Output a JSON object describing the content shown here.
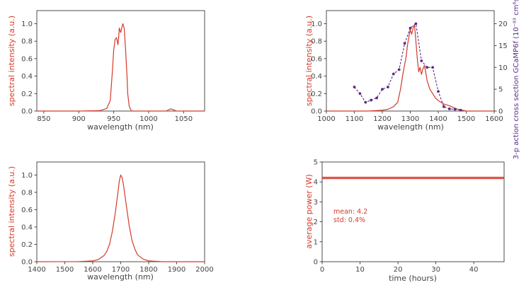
{
  "chart_data": [
    {
      "id": "spectrum-960",
      "type": "line",
      "xlabel": "wavelength (nm)",
      "ylabel": "spectral intensity (a.u.)",
      "xlim": [
        840,
        1080
      ],
      "ylim": [
        0,
        1.15
      ],
      "xticks": [
        850,
        900,
        950,
        1000,
        1050
      ],
      "yticks": [
        0.0,
        0.2,
        0.4,
        0.6,
        0.8,
        1.0
      ],
      "ytick_decimals": 1,
      "grid": false,
      "series": [
        {
          "color": "#d43a2a",
          "x": [
            840,
            900,
            930,
            940,
            945,
            948,
            950,
            952,
            954,
            956,
            957,
            958,
            960,
            962,
            963,
            965,
            967,
            969,
            970,
            972,
            974,
            976,
            980,
            1000,
            1025,
            1030,
            1032,
            1035,
            1040,
            1080
          ],
          "y": [
            0.0,
            0.0,
            0.005,
            0.03,
            0.12,
            0.45,
            0.7,
            0.82,
            0.84,
            0.76,
            0.83,
            0.95,
            0.9,
            0.97,
            1.0,
            0.95,
            0.7,
            0.4,
            0.2,
            0.06,
            0.02,
            0.0,
            0.0,
            0.0,
            0.0,
            0.02,
            0.025,
            0.015,
            0.0,
            0.0
          ]
        }
      ]
    },
    {
      "id": "spectrum-1300",
      "type": "line",
      "xlabel": "wavelength (nm)",
      "ylabel": "spectral intensity (a.u.)",
      "y2label": "3-p action cross section GCaMP6f (10⁻⁸³ cm⁶s²/photon²)",
      "xlim": [
        1000,
        1600
      ],
      "ylim": [
        0,
        1.15
      ],
      "y2lim": [
        0,
        23
      ],
      "xticks": [
        1000,
        1100,
        1200,
        1300,
        1400,
        1500,
        1600
      ],
      "yticks": [
        0.0,
        0.2,
        0.4,
        0.6,
        0.8,
        1.0
      ],
      "y2ticks": [
        0,
        5,
        10,
        15,
        20
      ],
      "ytick_decimals": 1,
      "grid": false,
      "series": [
        {
          "color": "#d43a2a",
          "axis": "left",
          "x": [
            1000,
            1150,
            1200,
            1220,
            1240,
            1255,
            1265,
            1275,
            1285,
            1290,
            1295,
            1300,
            1305,
            1310,
            1315,
            1320,
            1325,
            1330,
            1335,
            1340,
            1345,
            1350,
            1355,
            1360,
            1370,
            1380,
            1390,
            1400,
            1410,
            1420,
            1440,
            1470,
            1500,
            1600
          ],
          "y": [
            0.0,
            0.0,
            0.01,
            0.02,
            0.05,
            0.1,
            0.25,
            0.45,
            0.62,
            0.75,
            0.85,
            0.93,
            0.88,
            0.95,
            0.99,
            0.8,
            0.6,
            0.45,
            0.5,
            0.42,
            0.48,
            0.52,
            0.45,
            0.35,
            0.25,
            0.2,
            0.15,
            0.12,
            0.1,
            0.08,
            0.06,
            0.02,
            0.0,
            0.0
          ]
        },
        {
          "color": "#5b2a86",
          "axis": "right",
          "style": "dashed-markers",
          "x": [
            1100,
            1120,
            1140,
            1160,
            1180,
            1200,
            1220,
            1240,
            1260,
            1280,
            1300,
            1320,
            1340,
            1360,
            1380,
            1400,
            1420,
            1440,
            1460,
            1480
          ],
          "y": [
            5.5,
            4.0,
            2.0,
            2.5,
            3.0,
            5.0,
            5.5,
            8.5,
            9.5,
            15.5,
            19.0,
            20.0,
            11.5,
            10.0,
            10.0,
            4.5,
            1.0,
            0.5,
            0.4,
            0.2
          ]
        }
      ]
    },
    {
      "id": "spectrum-1700",
      "type": "line",
      "xlabel": "wavelength (nm)",
      "ylabel": "spectral intensity (a.u.)",
      "xlim": [
        1400,
        2000
      ],
      "ylim": [
        0,
        1.15
      ],
      "xticks": [
        1400,
        1500,
        1600,
        1700,
        1800,
        1900,
        2000
      ],
      "yticks": [
        0.0,
        0.2,
        0.4,
        0.6,
        0.8,
        1.0
      ],
      "ytick_decimals": 1,
      "grid": false,
      "series": [
        {
          "color": "#d43a2a",
          "x": [
            1400,
            1550,
            1600,
            1620,
            1640,
            1650,
            1660,
            1670,
            1680,
            1690,
            1695,
            1700,
            1705,
            1710,
            1720,
            1730,
            1740,
            1750,
            1760,
            1780,
            1800,
            1850,
            2000
          ],
          "y": [
            0.0,
            0.002,
            0.01,
            0.025,
            0.07,
            0.12,
            0.2,
            0.35,
            0.55,
            0.8,
            0.93,
            1.0,
            0.97,
            0.88,
            0.65,
            0.42,
            0.25,
            0.15,
            0.08,
            0.03,
            0.01,
            0.0,
            0.0
          ]
        }
      ]
    },
    {
      "id": "power-stability",
      "type": "line",
      "xlabel": "time (hours)",
      "ylabel": "average power (W)",
      "xlim": [
        0,
        48
      ],
      "ylim": [
        0,
        5
      ],
      "xticks": [
        0,
        10,
        20,
        30,
        40
      ],
      "yticks": [
        0,
        1,
        2,
        3,
        4,
        5
      ],
      "ytick_decimals": 0,
      "grid": false,
      "series": [
        {
          "color": "#d43a2a",
          "style": "band",
          "x": [
            0,
            48
          ],
          "y": [
            4.2,
            4.2
          ],
          "band": 0.06
        }
      ],
      "annotations": [
        "mean: 4.2",
        "std: 0.4%"
      ]
    }
  ]
}
